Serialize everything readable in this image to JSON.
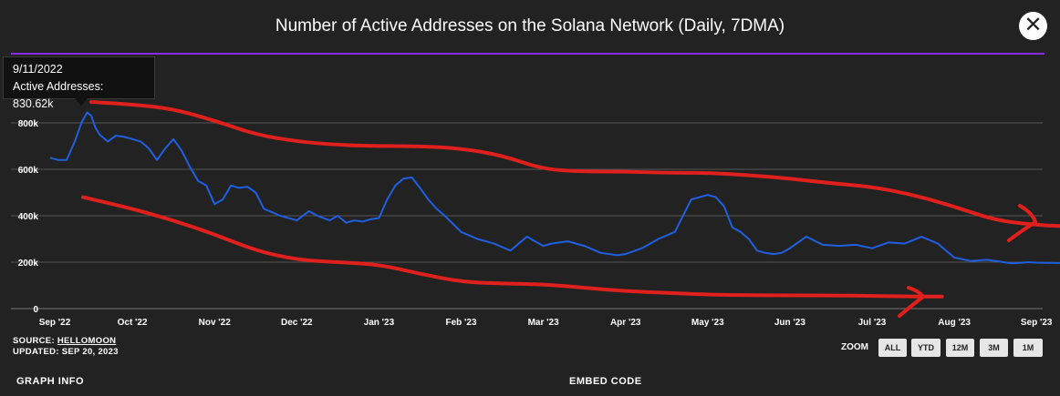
{
  "chart_data": {
    "type": "line",
    "title": "Number of Active Addresses on the Solana Network (Daily, 7DMA)",
    "xlabel": "",
    "ylabel": "",
    "ylim": [
      0,
      1000000
    ],
    "yticks": [
      0,
      200000,
      400000,
      600000,
      800000
    ],
    "ytick_labels": [
      "0",
      "200k",
      "400k",
      "600k",
      "800k"
    ],
    "xtick_labels": [
      "Sep '22",
      "Oct '22",
      "Nov '22",
      "Dec '22",
      "Jan '23",
      "Feb '23",
      "Mar '23",
      "Apr '23",
      "May '23",
      "Jun '23",
      "Jul '23",
      "Aug '23",
      "Sep '23"
    ],
    "xlim": [
      0,
      12.55
    ],
    "series": [
      {
        "name": "Active Addresses",
        "color": "#1f5fe0",
        "x": [
          0.0,
          0.1,
          0.2,
          0.3,
          0.38,
          0.45,
          0.5,
          0.55,
          0.6,
          0.7,
          0.8,
          0.9,
          1.0,
          1.1,
          1.2,
          1.3,
          1.4,
          1.5,
          1.6,
          1.7,
          1.8,
          1.9,
          2.0,
          2.1,
          2.2,
          2.3,
          2.4,
          2.5,
          2.6,
          2.8,
          3.0,
          3.15,
          3.25,
          3.4,
          3.5,
          3.6,
          3.7,
          3.8,
          3.9,
          4.0,
          4.1,
          4.2,
          4.3,
          4.4,
          4.5,
          4.6,
          4.7,
          4.8,
          5.0,
          5.2,
          5.4,
          5.6,
          5.8,
          5.9,
          6.0,
          6.1,
          6.2,
          6.3,
          6.5,
          6.7,
          6.9,
          7.0,
          7.2,
          7.4,
          7.6,
          7.8,
          8.0,
          8.1,
          8.2,
          8.3,
          8.4,
          8.5,
          8.6,
          8.7,
          8.8,
          8.9,
          9.0,
          9.2,
          9.4,
          9.6,
          9.8,
          10.0,
          10.2,
          10.4,
          10.6,
          10.8,
          11.0,
          11.2,
          11.4,
          11.6,
          11.7,
          11.8,
          11.9,
          12.0,
          12.2,
          12.4,
          12.55
        ],
        "y": [
          650000,
          640000,
          640000,
          720000,
          800000,
          845000,
          830000,
          780000,
          750000,
          720000,
          745000,
          740000,
          730000,
          720000,
          690000,
          640000,
          690000,
          730000,
          680000,
          610000,
          550000,
          530000,
          450000,
          470000,
          530000,
          520000,
          525000,
          500000,
          430000,
          400000,
          380000,
          420000,
          400000,
          380000,
          400000,
          370000,
          380000,
          375000,
          385000,
          390000,
          470000,
          530000,
          560000,
          565000,
          520000,
          470000,
          430000,
          400000,
          330000,
          300000,
          280000,
          250000,
          310000,
          290000,
          270000,
          280000,
          285000,
          290000,
          270000,
          240000,
          230000,
          235000,
          260000,
          300000,
          330000,
          470000,
          490000,
          480000,
          440000,
          350000,
          330000,
          300000,
          250000,
          240000,
          235000,
          240000,
          260000,
          310000,
          275000,
          270000,
          275000,
          260000,
          285000,
          280000,
          310000,
          280000,
          220000,
          205000,
          210000,
          200000,
          195000,
          197000,
          200000,
          198000,
          197000,
          196000,
          197000
        ]
      }
    ],
    "annotations": {
      "upper_curve": [
        [
          0.5,
          890000
        ],
        [
          1.0,
          880000
        ],
        [
          1.5,
          860000
        ],
        [
          2.0,
          810000
        ],
        [
          2.5,
          750000
        ],
        [
          3.0,
          720000
        ],
        [
          3.5,
          705000
        ],
        [
          4.0,
          700000
        ],
        [
          4.5,
          700000
        ],
        [
          5.0,
          690000
        ],
        [
          5.5,
          660000
        ],
        [
          6.0,
          600000
        ],
        [
          6.5,
          590000
        ],
        [
          7.0,
          590000
        ],
        [
          7.5,
          585000
        ],
        [
          8.0,
          585000
        ],
        [
          8.5,
          575000
        ],
        [
          9.0,
          560000
        ],
        [
          9.5,
          540000
        ],
        [
          10.0,
          525000
        ],
        [
          10.5,
          490000
        ],
        [
          11.0,
          440000
        ],
        [
          11.5,
          380000
        ],
        [
          12.0,
          360000
        ],
        [
          12.35,
          355000
        ]
      ],
      "lower_curve": [
        [
          0.4,
          480000
        ],
        [
          1.0,
          430000
        ],
        [
          1.5,
          380000
        ],
        [
          2.0,
          320000
        ],
        [
          2.5,
          250000
        ],
        [
          3.0,
          210000
        ],
        [
          3.5,
          200000
        ],
        [
          4.0,
          190000
        ],
        [
          4.5,
          150000
        ],
        [
          5.0,
          115000
        ],
        [
          5.5,
          108000
        ],
        [
          6.0,
          105000
        ],
        [
          6.5,
          90000
        ],
        [
          7.0,
          75000
        ],
        [
          7.5,
          68000
        ],
        [
          8.0,
          60000
        ],
        [
          8.5,
          58000
        ],
        [
          9.0,
          57000
        ],
        [
          9.5,
          57000
        ],
        [
          10.0,
          55000
        ],
        [
          10.5,
          52000
        ],
        [
          10.85,
          52000
        ]
      ]
    },
    "tooltip": {
      "date": "9/11/2022",
      "label": "Active Addresses: 830.62k"
    },
    "grid": true
  },
  "header": {
    "title": "Number of Active Addresses on the Solana Network (Daily, 7DMA)",
    "close_icon": "close-icon",
    "close_label": "✕"
  },
  "tooltip": {
    "date": "9/11/2022",
    "value": "Active Addresses: 830.62k"
  },
  "footer": {
    "source_prefix": "SOURCE: ",
    "source_name": "HELLOMOON",
    "updated": "UPDATED: SEP 20, 2023",
    "zoom_label": "ZOOM",
    "zoom_buttons": [
      "ALL",
      "YTD",
      "12M",
      "3M",
      "1M"
    ],
    "graph_info": "GRAPH INFO",
    "embed_code": "EMBED CODE"
  },
  "colors": {
    "background": "#222222",
    "line": "#1f5fe0",
    "annotation": "#e0201c",
    "title_rule": "#8a2be2"
  }
}
